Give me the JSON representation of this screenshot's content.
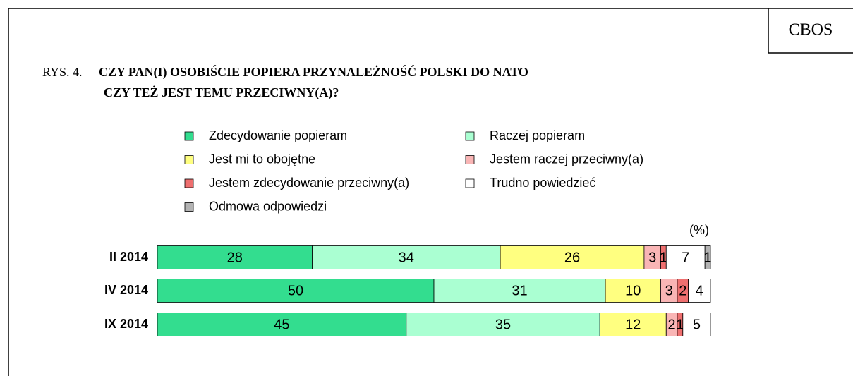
{
  "source": "CBOS",
  "chart_data": {
    "type": "stacked-bar-horizontal",
    "figure_label": "RYS. 4.",
    "title_lines": [
      "CZY PAN(I) OSOBIŚCIE POPIERA PRZYNALEŻNOŚĆ POLSKI DO NATO",
      "CZY TEŻ JEST TEMU PRZECIWNY(A)?"
    ],
    "unit": "(%)",
    "categories": [
      "II 2014",
      "IV 2014",
      "IX 2014"
    ],
    "xlim": [
      0,
      100
    ],
    "series": [
      {
        "name": "Zdecydowanie popieram",
        "color": "#33dd8f",
        "values": [
          28,
          50,
          45
        ]
      },
      {
        "name": "Raczej popieram",
        "color": "#aaffd2",
        "values": [
          34,
          31,
          35
        ]
      },
      {
        "name": "Jest mi to obojętne",
        "color": "#ffff80",
        "values": [
          26,
          10,
          12
        ]
      },
      {
        "name": "Jestem raczej przeciwny(a)",
        "color": "#f9b5b5",
        "values": [
          3,
          3,
          2
        ]
      },
      {
        "name": "Jestem zdecydowanie przeciwny(a)",
        "color": "#ee6f6f",
        "values": [
          1,
          2,
          1
        ]
      },
      {
        "name": "Trudno powiedzieć",
        "color": "#ffffff",
        "values": [
          7,
          4,
          5
        ]
      },
      {
        "name": "Odmowa odpowiedzi",
        "color": "#b3b3b3",
        "values": [
          1,
          null,
          null
        ]
      }
    ]
  }
}
